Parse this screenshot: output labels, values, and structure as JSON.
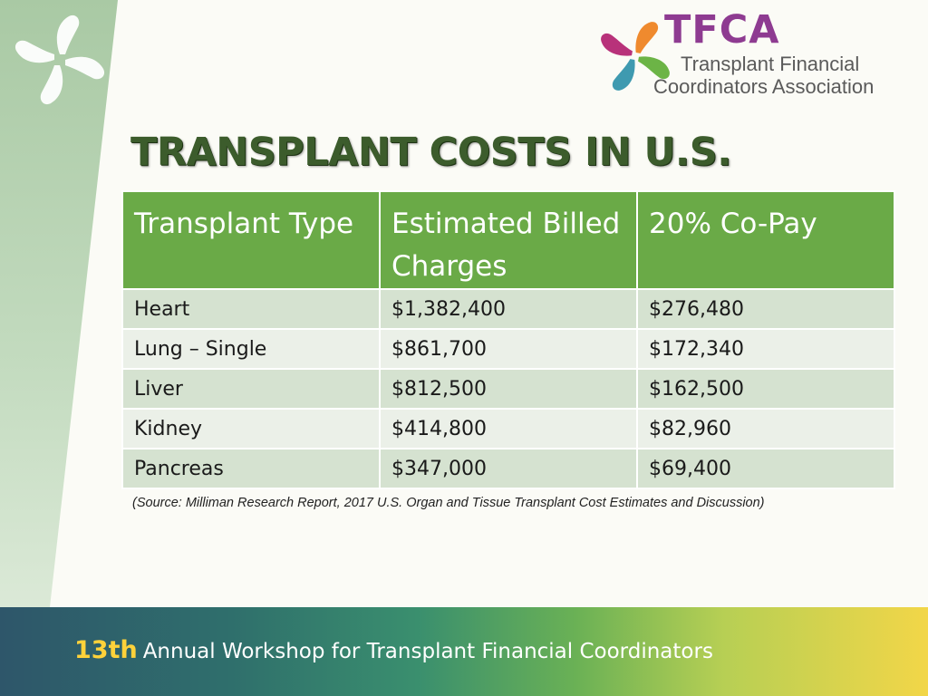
{
  "branding": {
    "acronym": "TFCA",
    "name_line1": "Transplant Financial",
    "name_line2": "Coordinators Association",
    "colors": {
      "magenta": "#b8327a",
      "orange": "#ef8a2e",
      "green": "#6cb446",
      "teal": "#3f9ab0",
      "acronym": "#8e3b91"
    }
  },
  "slide": {
    "title": "TRANSPLANT COSTS IN U.S.",
    "source_note": "(Source:  Milliman Research Report, 2017 U.S. Organ and Tissue Transplant Cost Estimates and Discussion)"
  },
  "table": {
    "headers": [
      "Transplant Type",
      "Estimated Billed Charges",
      "20% Co-Pay"
    ],
    "rows": [
      [
        "Heart",
        "$1,382,400",
        "$276,480"
      ],
      [
        "Lung – Single",
        "$861,700",
        "$172,340"
      ],
      [
        "Liver",
        "$812,500",
        "$162,500"
      ],
      [
        "Kidney",
        "$414,800",
        "$82,960"
      ],
      [
        "Pancreas",
        "$347,000",
        "$69,400"
      ]
    ]
  },
  "footer": {
    "ordinal": "13th",
    "text": "Annual Workshop for Transplant Financial Coordinators"
  },
  "theme": {
    "header_green": "#6aaa47",
    "title_green": "#3c5c2c",
    "row_light": "#ebf0e8",
    "row_dark": "#d5e2d0"
  }
}
